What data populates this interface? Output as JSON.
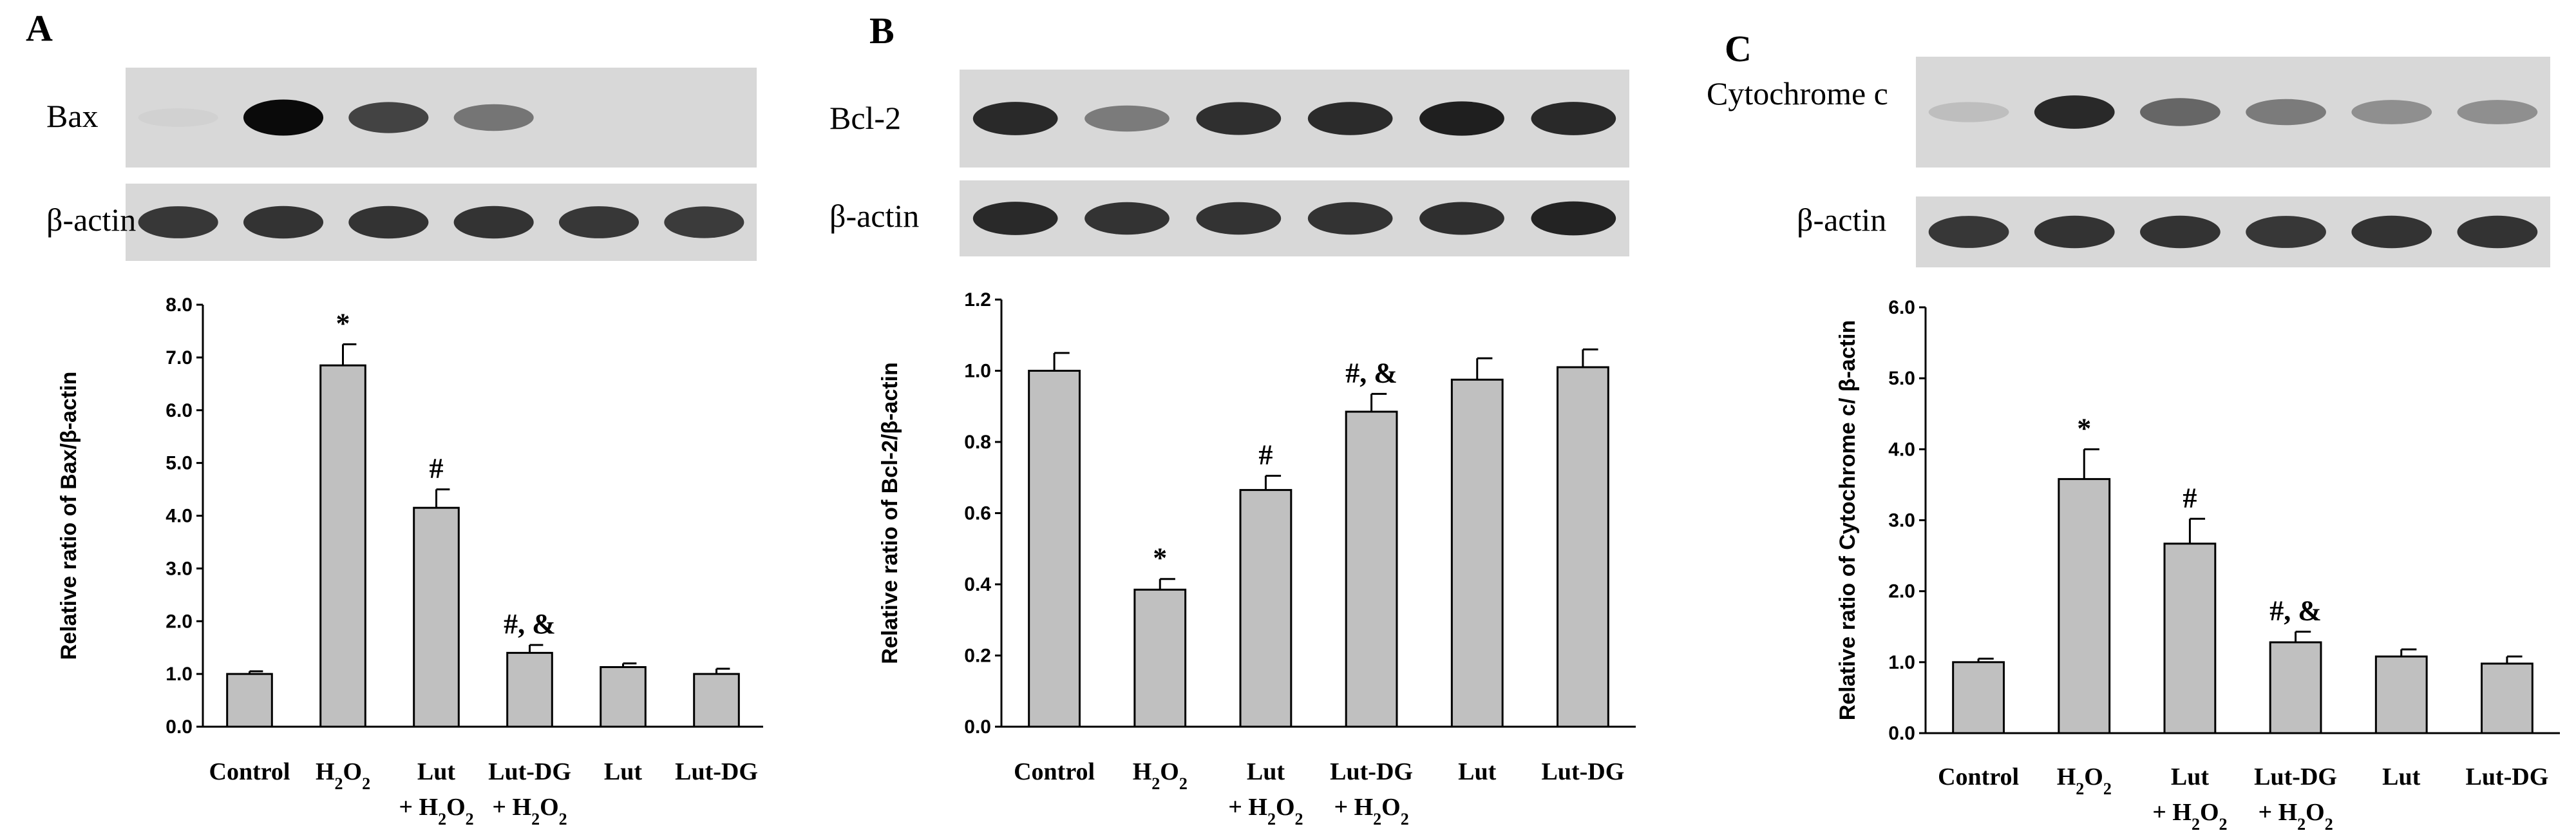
{
  "chart_data": [
    {
      "type": "bar",
      "panel": "A",
      "blots": [
        {
          "label": "Bax",
          "intensities": [
            0.03,
            1.0,
            0.72,
            0.48,
            0.0,
            0.0
          ]
        },
        {
          "label": "β-actin",
          "intensities": [
            0.78,
            0.8,
            0.8,
            0.8,
            0.78,
            0.76
          ]
        }
      ],
      "categories": [
        "Control",
        "H2O2",
        "Lut + H2O2",
        "Lut-DG + H2O2",
        "Lut",
        "Lut-DG"
      ],
      "values": [
        1.0,
        6.85,
        4.15,
        1.4,
        1.13,
        1.0
      ],
      "errors": [
        0.05,
        0.4,
        0.35,
        0.15,
        0.07,
        0.1
      ],
      "annotations": [
        "",
        "*",
        "#",
        "#, &",
        "",
        ""
      ],
      "ylabel": "Relative ratio of Bax/β-actin",
      "ylim": [
        0,
        8
      ],
      "yticks": [
        "0.0",
        "1.0",
        "2.0",
        "3.0",
        "4.0",
        "5.0",
        "6.0",
        "7.0",
        "8.0"
      ],
      "grid": false
    },
    {
      "type": "bar",
      "panel": "B",
      "blots": [
        {
          "label": "Bcl-2",
          "intensities": [
            0.85,
            0.45,
            0.82,
            0.84,
            0.9,
            0.85
          ]
        },
        {
          "label": "β-actin",
          "intensities": [
            0.85,
            0.8,
            0.8,
            0.8,
            0.82,
            0.88
          ]
        }
      ],
      "categories": [
        "Control",
        "H2O2",
        "Lut + H2O2",
        "Lut-DG + H2O2",
        "Lut",
        "Lut-DG"
      ],
      "values": [
        1.0,
        0.385,
        0.665,
        0.885,
        0.975,
        1.01
      ],
      "errors": [
        0.05,
        0.03,
        0.04,
        0.05,
        0.06,
        0.05
      ],
      "annotations": [
        "",
        "*",
        "#",
        "#, &",
        "",
        ""
      ],
      "ylabel": "Relative ratio of Bcl-2/β-actin",
      "ylim": [
        0,
        1.2
      ],
      "yticks": [
        "0.0",
        "0.2",
        "0.4",
        "0.6",
        "0.8",
        "1.0",
        "1.2"
      ],
      "grid": false
    },
    {
      "type": "bar",
      "panel": "C",
      "blots": [
        {
          "label": "Cytochrome c",
          "intensities": [
            0.12,
            0.85,
            0.55,
            0.45,
            0.35,
            0.35
          ]
        },
        {
          "label": "β-actin",
          "intensities": [
            0.78,
            0.8,
            0.8,
            0.78,
            0.8,
            0.8
          ]
        }
      ],
      "categories": [
        "Control",
        "H2O2",
        "Lut + H2O2",
        "Lut-DG + H2O2",
        "Lut",
        "Lut-DG"
      ],
      "values": [
        1.0,
        3.58,
        2.67,
        1.28,
        1.08,
        0.98
      ],
      "errors": [
        0.05,
        0.42,
        0.35,
        0.15,
        0.1,
        0.1
      ],
      "annotations": [
        "",
        "*",
        "#",
        "#, &",
        "",
        ""
      ],
      "ylabel": "Relative ratio of Cytochrome c/ β-actin",
      "ylim": [
        0,
        6
      ],
      "yticks": [
        "0.0",
        "1.0",
        "2.0",
        "3.0",
        "4.0",
        "5.0",
        "6.0"
      ],
      "grid": false
    }
  ]
}
